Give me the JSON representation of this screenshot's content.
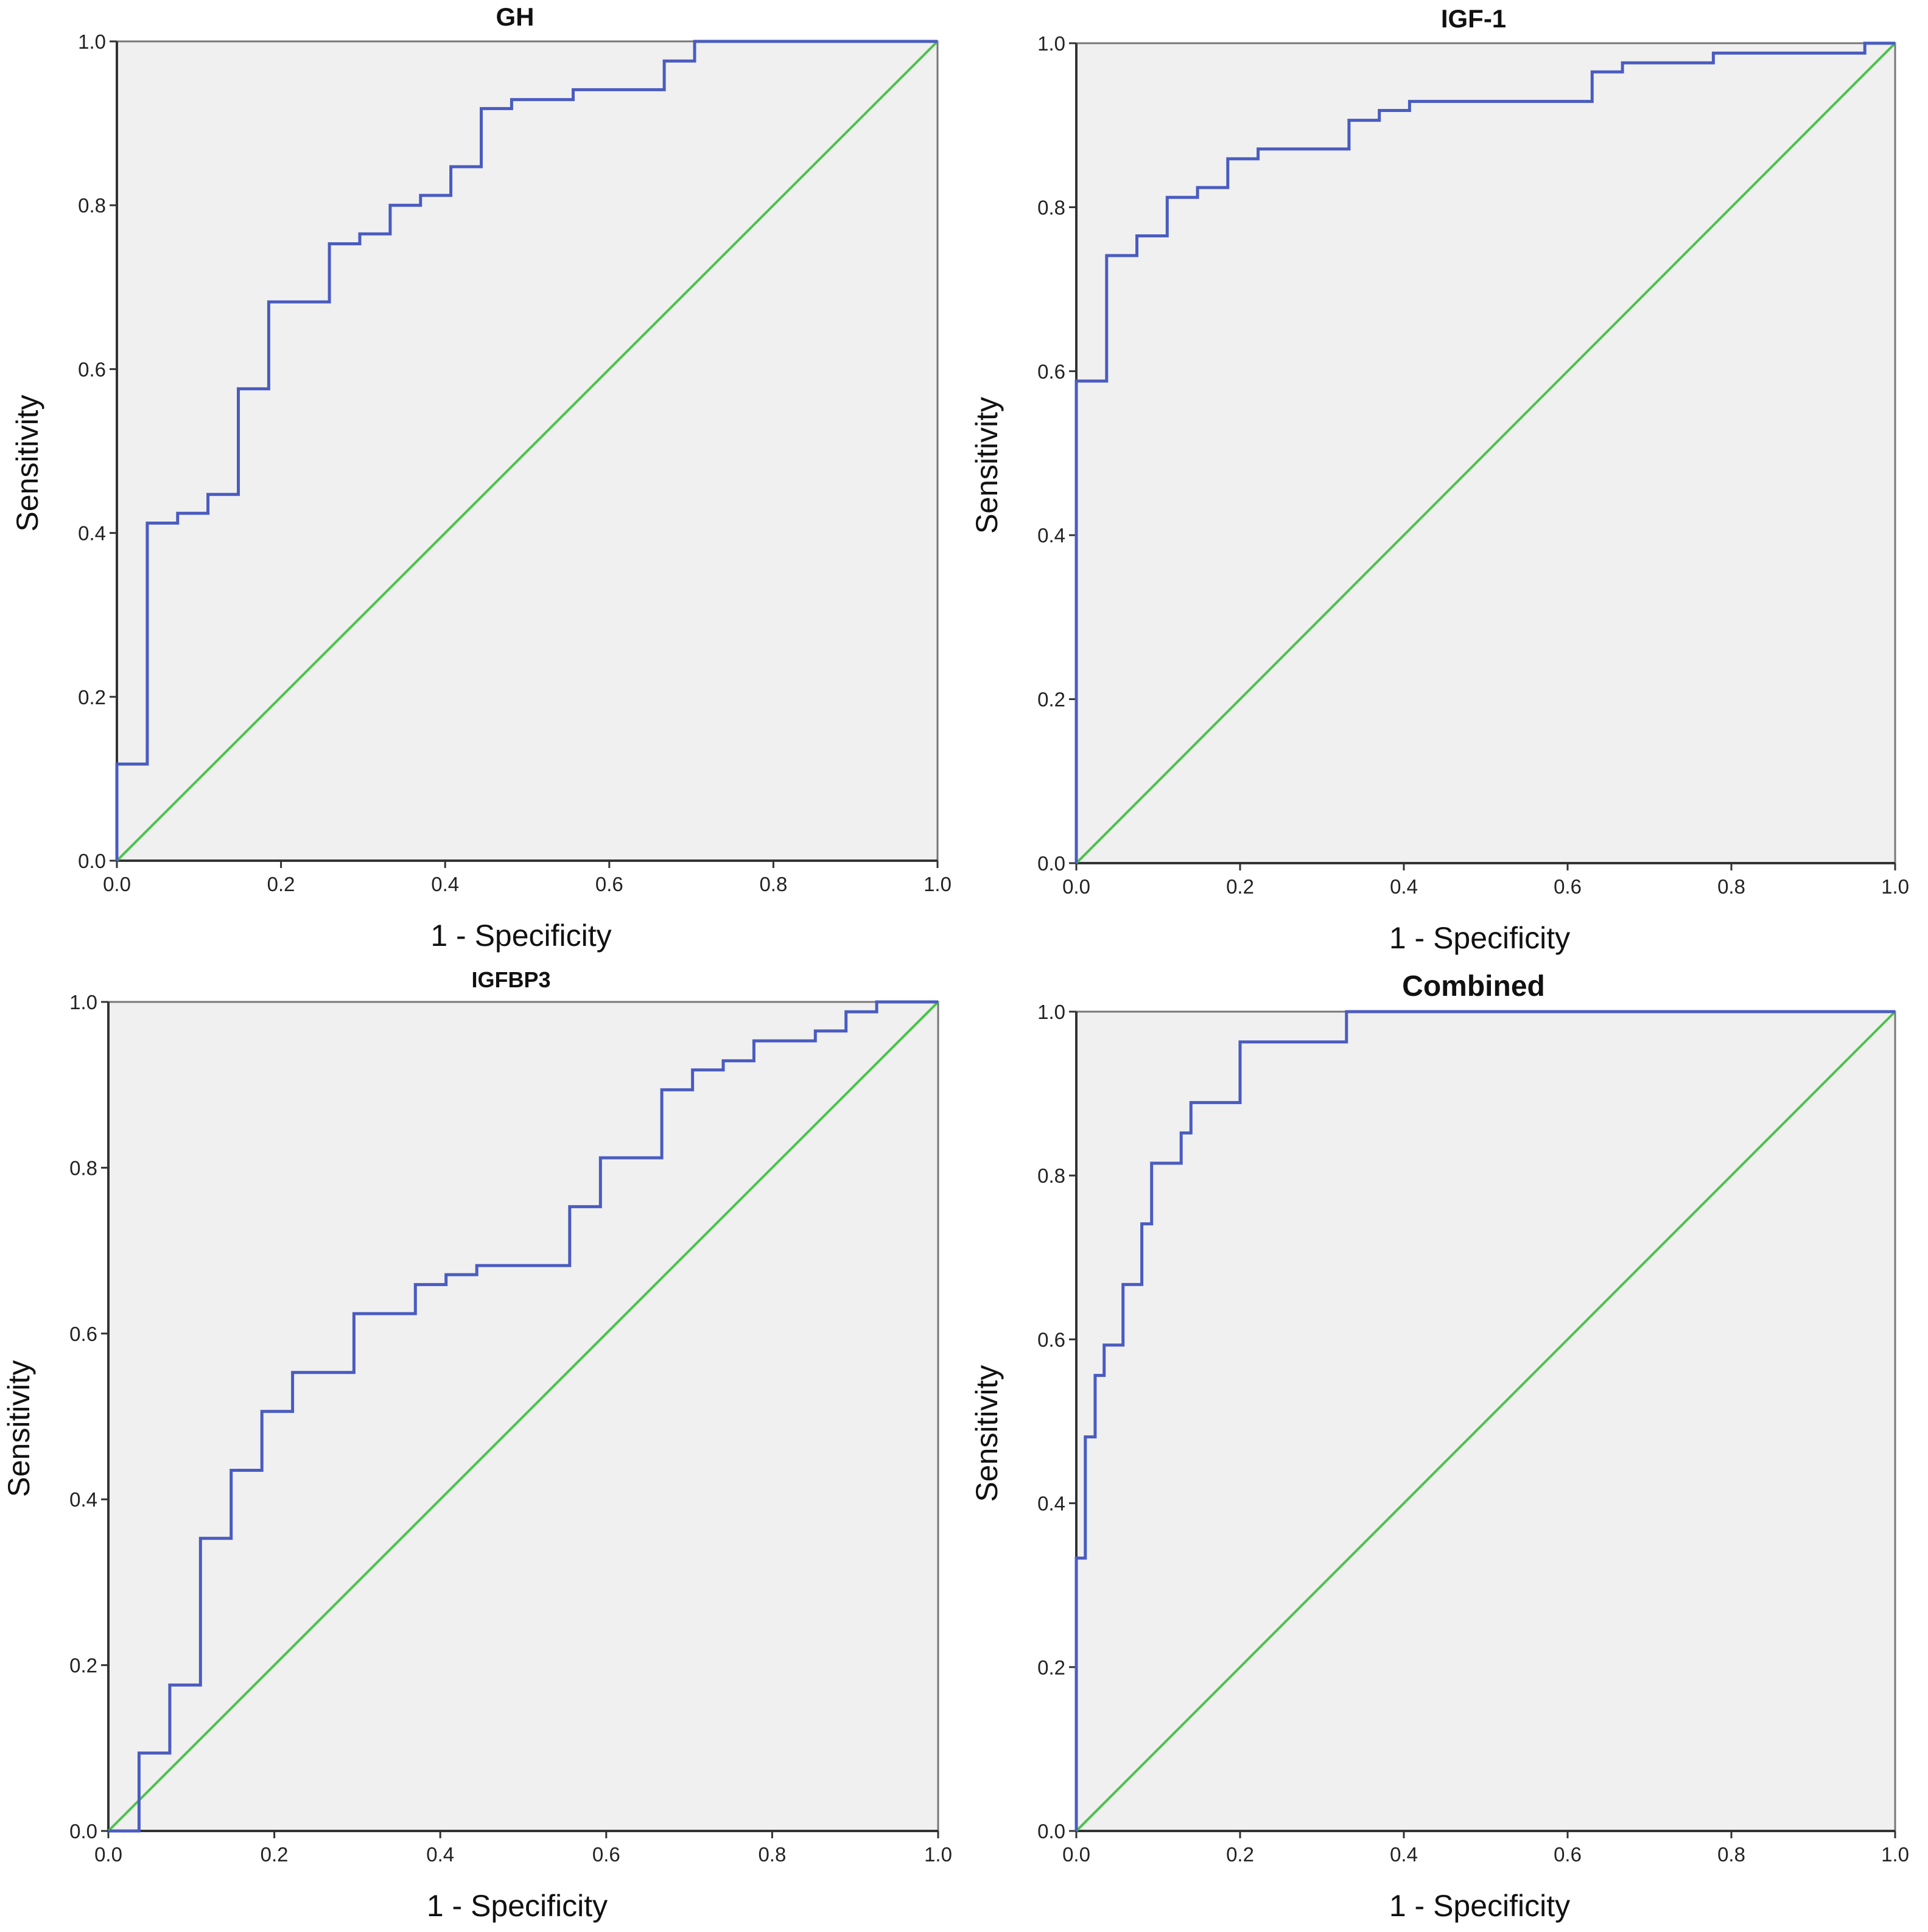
{
  "chart_data": [
    {
      "type": "line",
      "title": "GH",
      "xlabel": "1 - Specificity",
      "ylabel": "Sensitivity",
      "xlim": [
        0,
        1
      ],
      "ylim": [
        0,
        1
      ],
      "xticks": [
        "0.0",
        "0.2",
        "0.4",
        "0.6",
        "0.8",
        "1.0"
      ],
      "yticks": [
        "0.0",
        "0.2",
        "0.4",
        "0.6",
        "0.8",
        "1.0"
      ],
      "grid": false,
      "roc_steps": [
        [
          0,
          0
        ],
        [
          0,
          0.118
        ],
        [
          0.037,
          0.118
        ],
        [
          0.037,
          0.412
        ],
        [
          0.074,
          0.412
        ],
        [
          0.074,
          0.424
        ],
        [
          0.111,
          0.424
        ],
        [
          0.111,
          0.447
        ],
        [
          0.148,
          0.447
        ],
        [
          0.148,
          0.576
        ],
        [
          0.185,
          0.576
        ],
        [
          0.185,
          0.682
        ],
        [
          0.259,
          0.682
        ],
        [
          0.259,
          0.753
        ],
        [
          0.296,
          0.753
        ],
        [
          0.296,
          0.765
        ],
        [
          0.333,
          0.765
        ],
        [
          0.333,
          0.8
        ],
        [
          0.37,
          0.8
        ],
        [
          0.37,
          0.812
        ],
        [
          0.407,
          0.812
        ],
        [
          0.407,
          0.847
        ],
        [
          0.444,
          0.847
        ],
        [
          0.444,
          0.918
        ],
        [
          0.481,
          0.918
        ],
        [
          0.481,
          0.929
        ],
        [
          0.556,
          0.929
        ],
        [
          0.556,
          0.941
        ],
        [
          0.667,
          0.941
        ],
        [
          0.667,
          0.976
        ],
        [
          0.704,
          0.976
        ],
        [
          0.704,
          1
        ],
        [
          1,
          1
        ]
      ],
      "reference_line": [
        [
          0,
          0
        ],
        [
          1,
          1
        ]
      ]
    },
    {
      "type": "line",
      "title": "IGF-1",
      "xlabel": "1 - Specificity",
      "ylabel": "Sensitivity",
      "xlim": [
        0,
        1
      ],
      "ylim": [
        0,
        1
      ],
      "xticks": [
        "0.0",
        "0.2",
        "0.4",
        "0.6",
        "0.8",
        "1.0"
      ],
      "yticks": [
        "0.0",
        "0.2",
        "0.4",
        "0.6",
        "0.8",
        "1.0"
      ],
      "grid": false,
      "roc_steps": [
        [
          0,
          0
        ],
        [
          0,
          0.588
        ],
        [
          0.037,
          0.588
        ],
        [
          0.037,
          0.741
        ],
        [
          0.074,
          0.741
        ],
        [
          0.074,
          0.765
        ],
        [
          0.111,
          0.765
        ],
        [
          0.111,
          0.812
        ],
        [
          0.148,
          0.812
        ],
        [
          0.148,
          0.824
        ],
        [
          0.185,
          0.824
        ],
        [
          0.185,
          0.859
        ],
        [
          0.222,
          0.859
        ],
        [
          0.222,
          0.871
        ],
        [
          0.333,
          0.871
        ],
        [
          0.333,
          0.906
        ],
        [
          0.37,
          0.906
        ],
        [
          0.37,
          0.918
        ],
        [
          0.407,
          0.918
        ],
        [
          0.407,
          0.929
        ],
        [
          0.63,
          0.929
        ],
        [
          0.63,
          0.965
        ],
        [
          0.667,
          0.965
        ],
        [
          0.667,
          0.976
        ],
        [
          0.778,
          0.976
        ],
        [
          0.778,
          0.988
        ],
        [
          0.963,
          0.988
        ],
        [
          0.963,
          1
        ],
        [
          1,
          1
        ]
      ],
      "reference_line": [
        [
          0,
          0
        ],
        [
          1,
          1
        ]
      ]
    },
    {
      "type": "line",
      "title": "IGFBP3",
      "xlabel": "1 - Specificity",
      "ylabel": "Sensitivity",
      "xlim": [
        0,
        1
      ],
      "ylim": [
        0,
        1
      ],
      "xticks": [
        "0.0",
        "0.2",
        "0.4",
        "0.6",
        "0.8",
        "1.0"
      ],
      "yticks": [
        "0.0",
        "0.2",
        "0.4",
        "0.6",
        "0.8",
        "1.0"
      ],
      "grid": false,
      "roc_steps": [
        [
          0,
          0
        ],
        [
          0.037,
          0
        ],
        [
          0.037,
          0.094
        ],
        [
          0.074,
          0.094
        ],
        [
          0.074,
          0.176
        ],
        [
          0.111,
          0.176
        ],
        [
          0.111,
          0.353
        ],
        [
          0.148,
          0.353
        ],
        [
          0.148,
          0.435
        ],
        [
          0.185,
          0.435
        ],
        [
          0.185,
          0.506
        ],
        [
          0.222,
          0.506
        ],
        [
          0.222,
          0.553
        ],
        [
          0.296,
          0.553
        ],
        [
          0.296,
          0.624
        ],
        [
          0.37,
          0.624
        ],
        [
          0.37,
          0.659
        ],
        [
          0.407,
          0.659
        ],
        [
          0.407,
          0.671
        ],
        [
          0.444,
          0.671
        ],
        [
          0.444,
          0.682
        ],
        [
          0.556,
          0.682
        ],
        [
          0.556,
          0.753
        ],
        [
          0.593,
          0.753
        ],
        [
          0.593,
          0.812
        ],
        [
          0.667,
          0.812
        ],
        [
          0.667,
          0.894
        ],
        [
          0.704,
          0.894
        ],
        [
          0.704,
          0.918
        ],
        [
          0.741,
          0.918
        ],
        [
          0.741,
          0.929
        ],
        [
          0.778,
          0.929
        ],
        [
          0.778,
          0.953
        ],
        [
          0.852,
          0.953
        ],
        [
          0.852,
          0.965
        ],
        [
          0.889,
          0.965
        ],
        [
          0.889,
          0.988
        ],
        [
          0.926,
          0.988
        ],
        [
          0.926,
          1
        ],
        [
          1,
          1
        ]
      ],
      "reference_line": [
        [
          0,
          0
        ],
        [
          1,
          1
        ]
      ]
    },
    {
      "type": "line",
      "title": "Combined",
      "xlabel": "1 - Specificity",
      "ylabel": "Sensitivity",
      "xlim": [
        0,
        1
      ],
      "ylim": [
        0,
        1
      ],
      "xticks": [
        "0.0",
        "0.2",
        "0.4",
        "0.6",
        "0.8",
        "1.0"
      ],
      "yticks": [
        "0.0",
        "0.2",
        "0.4",
        "0.6",
        "0.8",
        "1.0"
      ],
      "grid": false,
      "roc_steps": [
        [
          0,
          0
        ],
        [
          0,
          0.333
        ],
        [
          0.011,
          0.333
        ],
        [
          0.011,
          0.481
        ],
        [
          0.023,
          0.481
        ],
        [
          0.023,
          0.556
        ],
        [
          0.034,
          0.556
        ],
        [
          0.034,
          0.593
        ],
        [
          0.057,
          0.593
        ],
        [
          0.057,
          0.667
        ],
        [
          0.08,
          0.667
        ],
        [
          0.08,
          0.741
        ],
        [
          0.092,
          0.741
        ],
        [
          0.092,
          0.815
        ],
        [
          0.128,
          0.815
        ],
        [
          0.128,
          0.852
        ],
        [
          0.14,
          0.852
        ],
        [
          0.14,
          0.889
        ],
        [
          0.2,
          0.889
        ],
        [
          0.2,
          0.963
        ],
        [
          0.33,
          0.963
        ],
        [
          0.33,
          1
        ],
        [
          1,
          1
        ]
      ],
      "reference_line": [
        [
          0,
          0
        ],
        [
          1,
          1
        ]
      ]
    }
  ],
  "colors": {
    "roc_curve": "#4a5cc0",
    "reference_line": "#4cc24c",
    "plot_background": "#f0f0f0",
    "axis": "#333333"
  }
}
